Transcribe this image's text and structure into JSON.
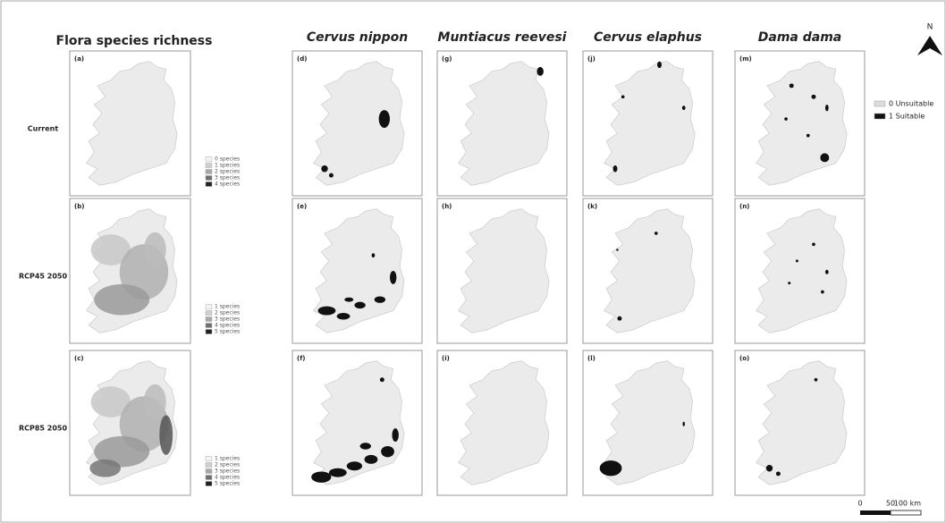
{
  "flora": {
    "title": "Flora species richness",
    "rows": [
      {
        "label": "Current",
        "panel": "(a)",
        "legend": [
          "0 species",
          "1 species",
          "2 species",
          "3 species",
          "4 species"
        ]
      },
      {
        "label": "RCP45 2050",
        "panel": "(b)",
        "legend": [
          "1 species",
          "2 species",
          "3 species",
          "4 species",
          "5 species"
        ]
      },
      {
        "label": "RCP85 2050",
        "panel": "(c)",
        "legend": [
          "1 species",
          "2 species",
          "3 species",
          "4 species",
          "5 species"
        ]
      }
    ]
  },
  "species": [
    {
      "name": "Cervus nippon",
      "panels": [
        "(d)",
        "(e)",
        "(f)"
      ]
    },
    {
      "name": "Muntiacus reevesi",
      "panels": [
        "(g)",
        "(h)",
        "(i)"
      ]
    },
    {
      "name": "Cervus elaphus",
      "panels": [
        "(j)",
        "(k)",
        "(l)"
      ]
    },
    {
      "name": "Dama dama",
      "panels": [
        "(m)",
        "(n)",
        "(o)"
      ]
    }
  ],
  "legend": [
    "0 Unsuitable",
    "1 Suitable"
  ],
  "north": "N",
  "scale": [
    "0",
    "50",
    "100 km"
  ]
}
